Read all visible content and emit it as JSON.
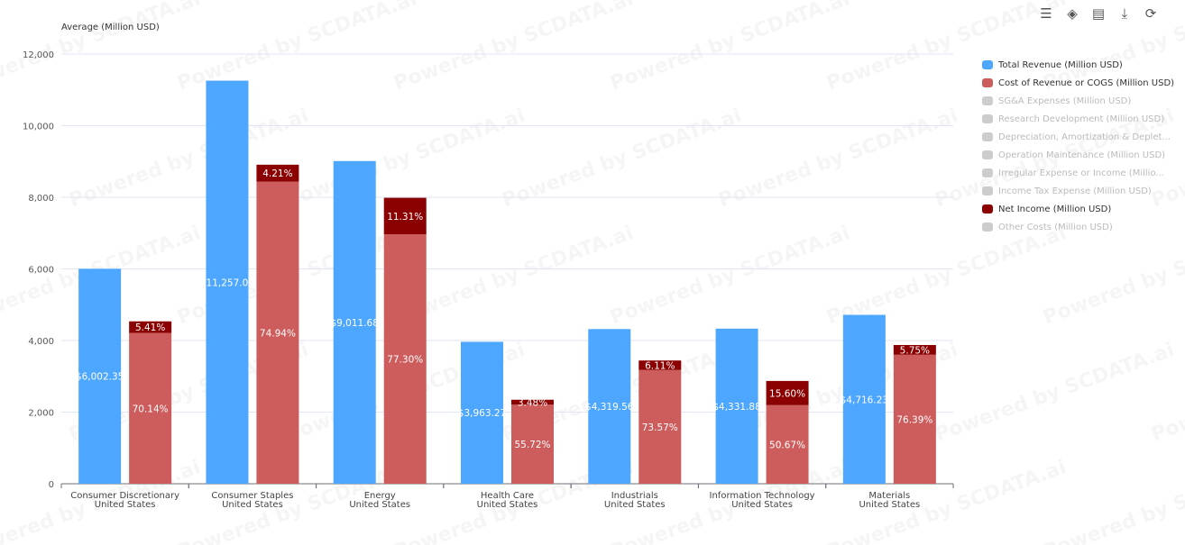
{
  "toolbar": [
    {
      "name": "bar-chart-icon",
      "glyph": "☰"
    },
    {
      "name": "tag-icon",
      "glyph": "◈"
    },
    {
      "name": "table-icon",
      "glyph": "▤"
    },
    {
      "name": "download-icon",
      "glyph": "⤓"
    },
    {
      "name": "refresh-icon",
      "glyph": "⟳"
    }
  ],
  "watermark": "Powered by SCDATA.ai",
  "legend": [
    {
      "label": "Total Revenue (Million USD)",
      "color": "#4da6ff",
      "active": true
    },
    {
      "label": "Cost of Revenue or COGS (Million USD)",
      "color": "#cd5c5c",
      "active": true
    },
    {
      "label": "SG&A Expenses (Million USD)",
      "color": "#ccc",
      "active": false
    },
    {
      "label": "Research Development (Million USD)",
      "color": "#ccc",
      "active": false
    },
    {
      "label": "Depreciation, Amortization & Deplet...",
      "color": "#ccc",
      "active": false
    },
    {
      "label": "Operation Maintenance (Million USD)",
      "color": "#ccc",
      "active": false
    },
    {
      "label": "Irregular Expense or Income (Millio...",
      "color": "#ccc",
      "active": false
    },
    {
      "label": "Income Tax Expense (Million USD)",
      "color": "#ccc",
      "active": false
    },
    {
      "label": "Net Income (Million USD)",
      "color": "#8b0000",
      "active": true
    },
    {
      "label": "Other Costs (Million USD)",
      "color": "#ccc",
      "active": false
    }
  ],
  "chart_data": {
    "type": "bar",
    "ylabel": "Average (Million USD)",
    "ylim": [
      0,
      12000
    ],
    "yticks": [
      0,
      2000,
      4000,
      6000,
      8000,
      10000,
      12000
    ],
    "ytick_labels": [
      "0",
      "2,000",
      "4,000",
      "6,000",
      "8,000",
      "10,000",
      "12,000"
    ],
    "categories": [
      "Consumer Discretionary\nUnited States",
      "Consumer Staples\nUnited States",
      "Energy\nUnited States",
      "Health Care\nUnited States",
      "Industrials\nUnited States",
      "Information Technology\nUnited States",
      "Materials\nUnited States"
    ],
    "series": [
      {
        "name": "Total Revenue (Million USD)",
        "values": [
          6002.35,
          11257.06,
          9011.68,
          3963.27,
          4319.56,
          4331.88,
          4716.23
        ],
        "labels": [
          "$6,002.35",
          "$11,257.06",
          "$9,011.68",
          "$3,963.27",
          "$4,319.56",
          "$4,331.88",
          "$4,716.23"
        ]
      },
      {
        "name": "Cost of Revenue or COGS (Million USD)",
        "pct": [
          70.14,
          74.94,
          77.3,
          55.72,
          73.57,
          50.67,
          76.39
        ],
        "labels": [
          "70.14%",
          "74.94%",
          "77.30%",
          "55.72%",
          "73.57%",
          "50.67%",
          "76.39%"
        ]
      },
      {
        "name": "Net Income (Million USD)",
        "pct": [
          5.41,
          4.21,
          11.31,
          3.48,
          6.11,
          15.6,
          5.75
        ],
        "labels": [
          "5.41%",
          "4.21%",
          "11.31%",
          "3.48%",
          "6.11%",
          "15.60%",
          "5.75%"
        ]
      }
    ]
  }
}
